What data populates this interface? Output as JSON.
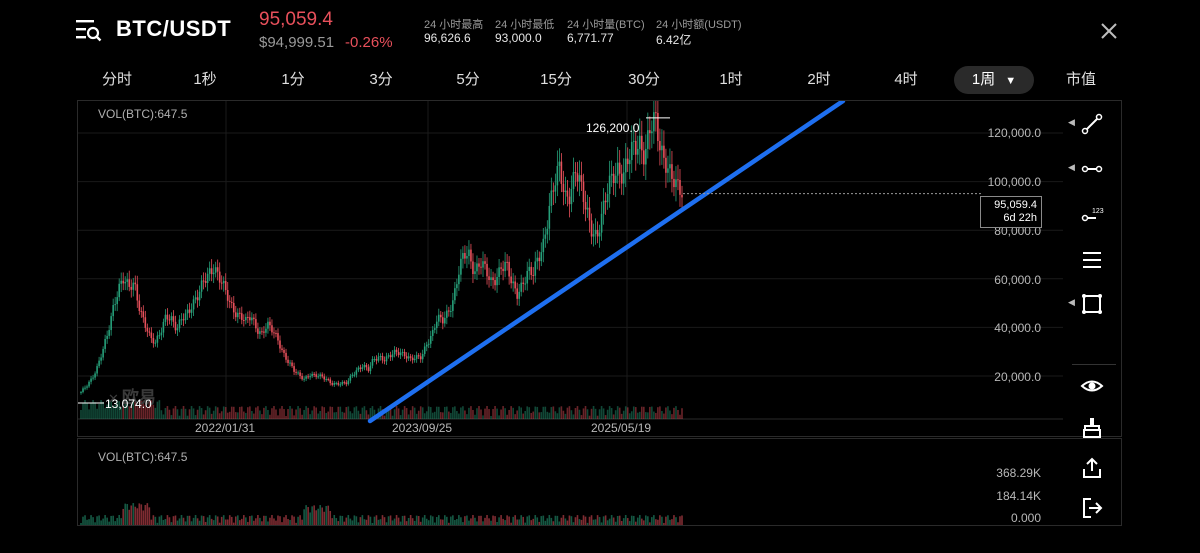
{
  "header": {
    "pair": "BTC/USDT",
    "last_price": "95,059.4",
    "usd_price": "$94,999.51",
    "change": "-0.26%",
    "stats": [
      {
        "label": "24 小时最高",
        "value": "96,626.6"
      },
      {
        "label": "24 小时最低",
        "value": "93,000.0"
      },
      {
        "label": "24 小时量(BTC)",
        "value": "6,771.77"
      },
      {
        "label": "24 小时额(USDT)",
        "value": "6.42亿"
      }
    ],
    "close_icon": "close-icon",
    "menu_icon": "search-list-icon"
  },
  "tabs": [
    {
      "label": "分时"
    },
    {
      "label": "1秒"
    },
    {
      "label": "1分"
    },
    {
      "label": "3分"
    },
    {
      "label": "5分"
    },
    {
      "label": "15分"
    },
    {
      "label": "30分"
    },
    {
      "label": "1时"
    },
    {
      "label": "2时"
    },
    {
      "label": "4时"
    },
    {
      "label": "1周",
      "active": true
    },
    {
      "label": "市值"
    }
  ],
  "main_chart": {
    "vol_label": "VOL(BTC):647.5",
    "watermark": "欧易",
    "y_ticks": [
      "120,000.0",
      "100,000.0",
      "80,000.0",
      "60,000.0",
      "40,000.0",
      "20,000.0"
    ],
    "x_ticks": [
      "2022/01/31",
      "2023/09/25",
      "2025/05/19"
    ],
    "high_marker": "126,200.0",
    "low_marker": "13,074.0",
    "current_price": "95,059.4",
    "countdown": "6d 22h"
  },
  "volume_chart": {
    "label": "VOL(BTC):647.5",
    "y_ticks": [
      "368.29K",
      "184.14K",
      "0.000"
    ]
  },
  "colors": {
    "up": "#26a07a",
    "down": "#e8505b",
    "trendline": "#1e6ff0",
    "background": "#000000"
  },
  "chart_data": {
    "type": "candlestick",
    "x_ticks": [
      "2022/01/31",
      "2023/09/25",
      "2025/05/19"
    ],
    "ylim": [
      0,
      130000
    ],
    "y_ticks": [
      20000,
      40000,
      60000,
      80000,
      100000,
      120000
    ],
    "series": [
      {
        "closes": [
          13074,
          15800,
          19200,
          23500,
          29500,
          36500,
          48000,
          57000,
          60000,
          55000,
          58000,
          49000,
          42000,
          35000,
          33000,
          39000,
          46000,
          43000,
          38000,
          44000,
          47000,
          50000,
          52000,
          58000,
          63000,
          66000,
          60000,
          55000,
          50000,
          47000,
          45000,
          42000,
          44000,
          40000,
          38000,
          41000,
          38000,
          35000,
          30000,
          26000,
          22000,
          20000,
          19000,
          21000,
          20000,
          19500,
          19000,
          17500,
          16800,
          16500,
          17000,
          21000,
          23000,
          24000,
          22000,
          27000,
          28500,
          26800,
          27500,
          29500,
          30200,
          29000,
          26500,
          27000,
          28000,
          34000,
          37000,
          43000,
          42500,
          47000,
          52000,
          62000,
          69000,
          70000,
          64000,
          67000,
          63000,
          58000,
          61000,
          66000,
          65000,
          57000,
          54000,
          59000,
          63000,
          61000,
          68000,
          76000,
          90000,
          98000,
          104000,
          94000,
          97000,
          105000,
          96000,
          88000,
          82000,
          78000,
          85000,
          95000,
          104000,
          107000,
          102000,
          108000,
          114000,
          118000,
          112000,
          120000,
          124000,
          114000,
          110000,
          102000,
          96000,
          95059
        ]
      }
    ],
    "high": 126200,
    "low": 13074,
    "current": 95059.4,
    "volume_ylim": [
      0,
      368290
    ],
    "volume_ticks": [
      0,
      184140,
      368290
    ]
  }
}
